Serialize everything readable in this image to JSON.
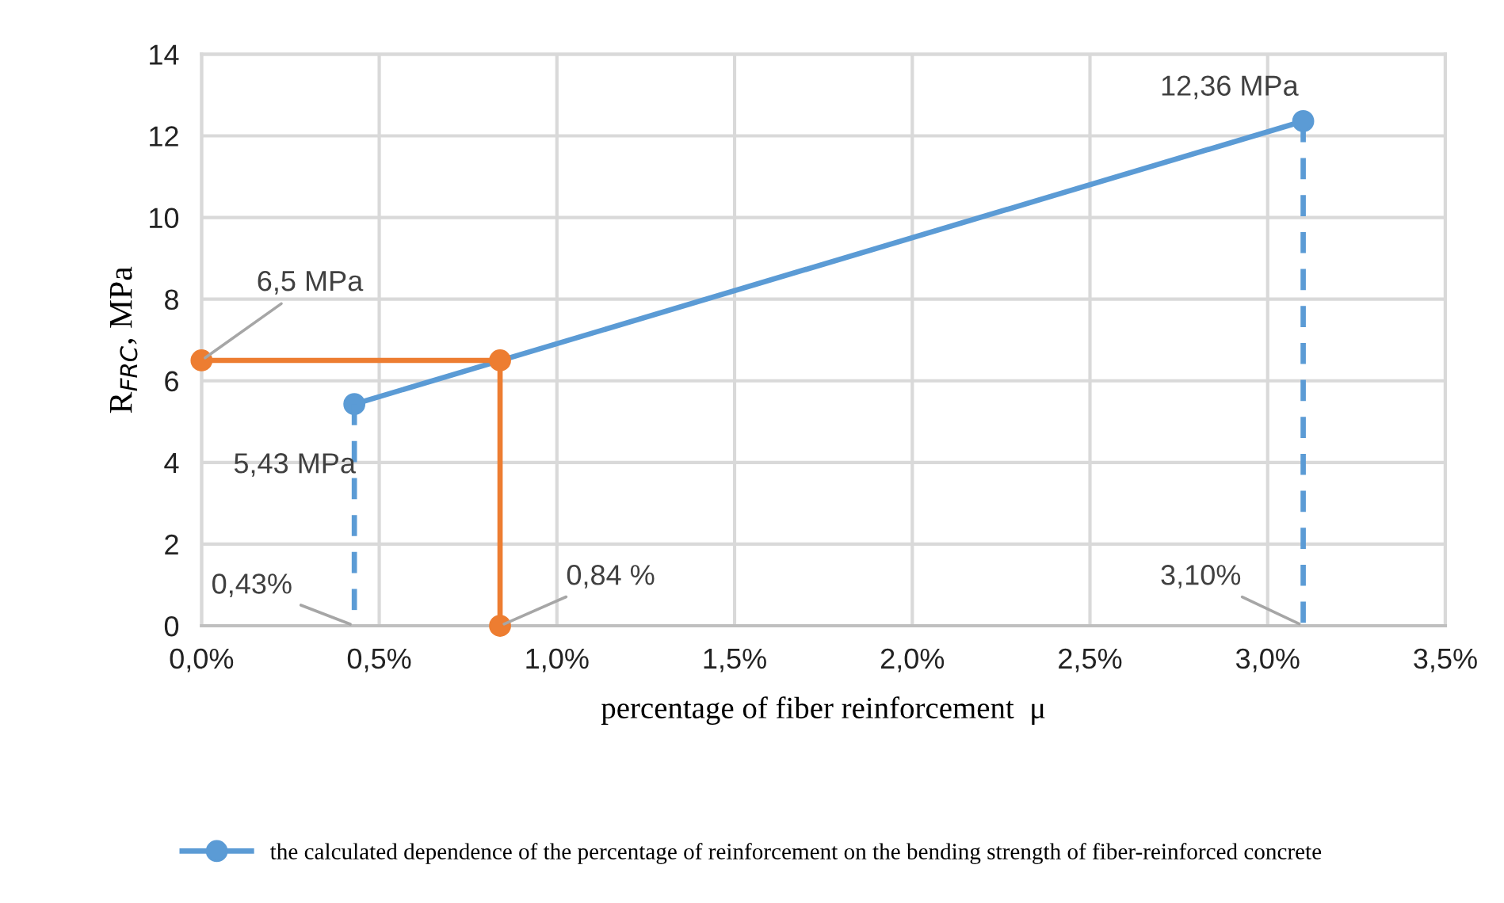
{
  "chart_data": {
    "type": "line",
    "xlabel": "percentage of fiber reinforcement  μ",
    "ylabel": "R$_{FRC}$, MPa",
    "series": [
      {
        "name": "the calculated dependence of the percentage of reinforcement on the bending strength of fiber-reinforced concrete",
        "color": "#5b9bd5",
        "x": [
          0.43,
          3.1
        ],
        "values": [
          5.43,
          12.36
        ],
        "marker": "circle",
        "line_style": "solid"
      },
      {
        "color": "#ed7d31",
        "x": [
          0,
          0.84,
          0.84
        ],
        "values": [
          6.5,
          6.5,
          0
        ],
        "marker": "circle",
        "line_style": "solid"
      },
      {
        "color": "#5b9bd5",
        "x": [
          0.43,
          0.43
        ],
        "values": [
          5.43,
          0
        ],
        "marker": "none",
        "line_style": "dashed"
      },
      {
        "color": "#5b9bd5",
        "x": [
          3.1,
          3.1
        ],
        "values": [
          12.36,
          0
        ],
        "marker": "none",
        "line_style": "dashed"
      }
    ],
    "annotations": [
      {
        "text": "6,5 MPa",
        "x": 0,
        "y": 6.5
      },
      {
        "text": "5,43 MPa",
        "x": 0.43,
        "y": 5.43
      },
      {
        "text": "12,36 MPa",
        "x": 3.1,
        "y": 12.36
      },
      {
        "text": "0,43%",
        "x": 0.43,
        "y": 0
      },
      {
        "text": "0,84 %",
        "x": 0.84,
        "y": 0
      },
      {
        "text": "3,10%",
        "x": 3.1,
        "y": 0
      }
    ],
    "xlim": [
      0,
      3.5
    ],
    "xticks": [
      {
        "value": 0,
        "label": "0,0%"
      },
      {
        "value": 0.5,
        "label": "0,5%"
      },
      {
        "value": 1.0,
        "label": "1,0%"
      },
      {
        "value": 1.5,
        "label": "1,5%"
      },
      {
        "value": 2.0,
        "label": "2,0%"
      },
      {
        "value": 2.5,
        "label": "2,5%"
      },
      {
        "value": 3.0,
        "label": "3,0%"
      },
      {
        "value": 3.5,
        "label": "3,5%"
      }
    ],
    "ylim": [
      0,
      14
    ],
    "yticks": [
      0,
      2,
      4,
      6,
      8,
      10,
      12,
      14
    ],
    "grid": true,
    "legend": "bottom"
  }
}
